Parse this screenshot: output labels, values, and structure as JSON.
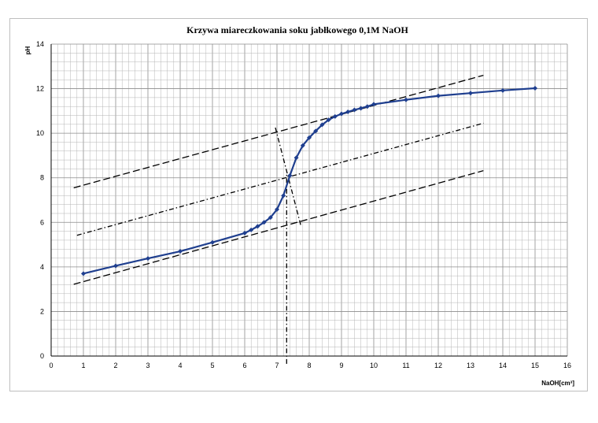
{
  "chart_data": {
    "type": "line",
    "title": "Krzywa miareczkowania soku jabłkowego 0,1M NaOH",
    "xlabel": "NaOH[cm³]",
    "ylabel": "pH",
    "xlim": [
      0,
      16
    ],
    "ylim": [
      0,
      14
    ],
    "x_ticks": [
      "0",
      "1",
      "2",
      "3",
      "4",
      "5",
      "6",
      "7",
      "8",
      "9",
      "10",
      "11",
      "12",
      "13",
      "14",
      "15",
      "16"
    ],
    "y_ticks": [
      "0",
      "2",
      "4",
      "6",
      "8",
      "10",
      "12",
      "14"
    ],
    "grid": true,
    "legend": "none",
    "series": [
      {
        "color": "#1f3f8f",
        "marker": "diamond",
        "x": [
          1,
          2,
          3,
          4,
          5,
          6,
          6.2,
          6.4,
          6.6,
          6.8,
          7.0,
          7.2,
          7.4,
          7.6,
          7.8,
          8.0,
          8.2,
          8.4,
          8.6,
          8.8,
          9.0,
          9.2,
          9.4,
          9.6,
          9.8,
          10,
          11,
          12,
          13,
          14,
          15
        ],
        "y": [
          3.7,
          4.05,
          4.38,
          4.7,
          5.1,
          5.52,
          5.66,
          5.82,
          6.0,
          6.22,
          6.58,
          7.2,
          8.1,
          8.9,
          9.45,
          9.8,
          10.1,
          10.38,
          10.6,
          10.75,
          10.87,
          10.96,
          11.05,
          11.12,
          11.2,
          11.3,
          11.5,
          11.68,
          11.8,
          11.92,
          12.02
        ]
      }
    ],
    "annotations": [
      {
        "style": "dashed",
        "x": [
          0.7,
          13.4
        ],
        "y": [
          7.55,
          12.6
        ]
      },
      {
        "style": "dash-dot",
        "x": [
          0.8,
          13.4
        ],
        "y": [
          5.42,
          10.45
        ]
      },
      {
        "style": "dashed",
        "x": [
          0.7,
          13.4
        ],
        "y": [
          3.22,
          8.32
        ]
      },
      {
        "style": "dash-dot",
        "x": [
          6.95,
          7.75
        ],
        "y": [
          10.25,
          5.8
        ]
      },
      {
        "style": "dash-dot",
        "x": [
          7.3,
          7.3
        ],
        "y": [
          -0.35,
          8.25
        ]
      }
    ]
  }
}
